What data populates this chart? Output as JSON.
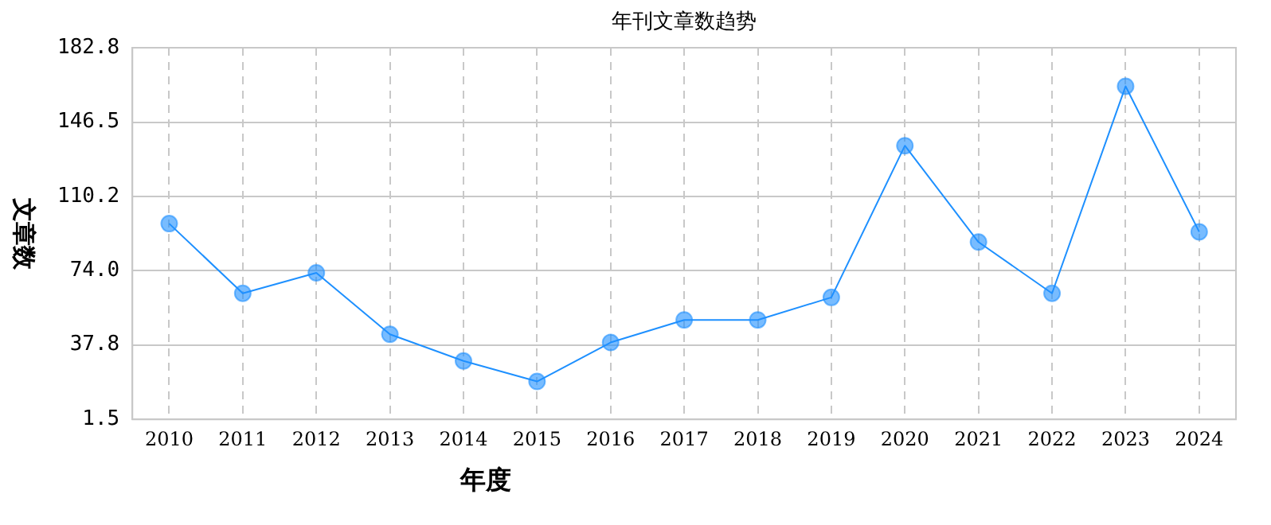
{
  "chart_data": {
    "type": "line",
    "title": "年刊文章数趋势",
    "xlabel": "年度",
    "ylabel": "文章数",
    "categories": [
      "2010",
      "2011",
      "2012",
      "2013",
      "2014",
      "2015",
      "2016",
      "2017",
      "2018",
      "2019",
      "2020",
      "2021",
      "2022",
      "2023",
      "2024"
    ],
    "series": [
      {
        "color": "#1e90ff",
        "values": [
          97,
          63,
          73,
          43,
          30,
          20,
          39,
          50,
          50,
          61,
          135,
          88,
          63,
          164,
          93
        ]
      }
    ],
    "ylim": [
      1.5,
      182.8
    ],
    "yticks": [
      {
        "value": 1.5,
        "label": "1.5"
      },
      {
        "value": 37.8,
        "label": "37.8"
      },
      {
        "value": 74,
        "label": "74.0"
      },
      {
        "value": 110.2,
        "label": "110.2"
      },
      {
        "value": 146.5,
        "label": "146.5"
      },
      {
        "value": 182.8,
        "label": "182.8"
      }
    ],
    "grid": true,
    "legend": false,
    "marker": "circle",
    "line_style": "solid"
  }
}
